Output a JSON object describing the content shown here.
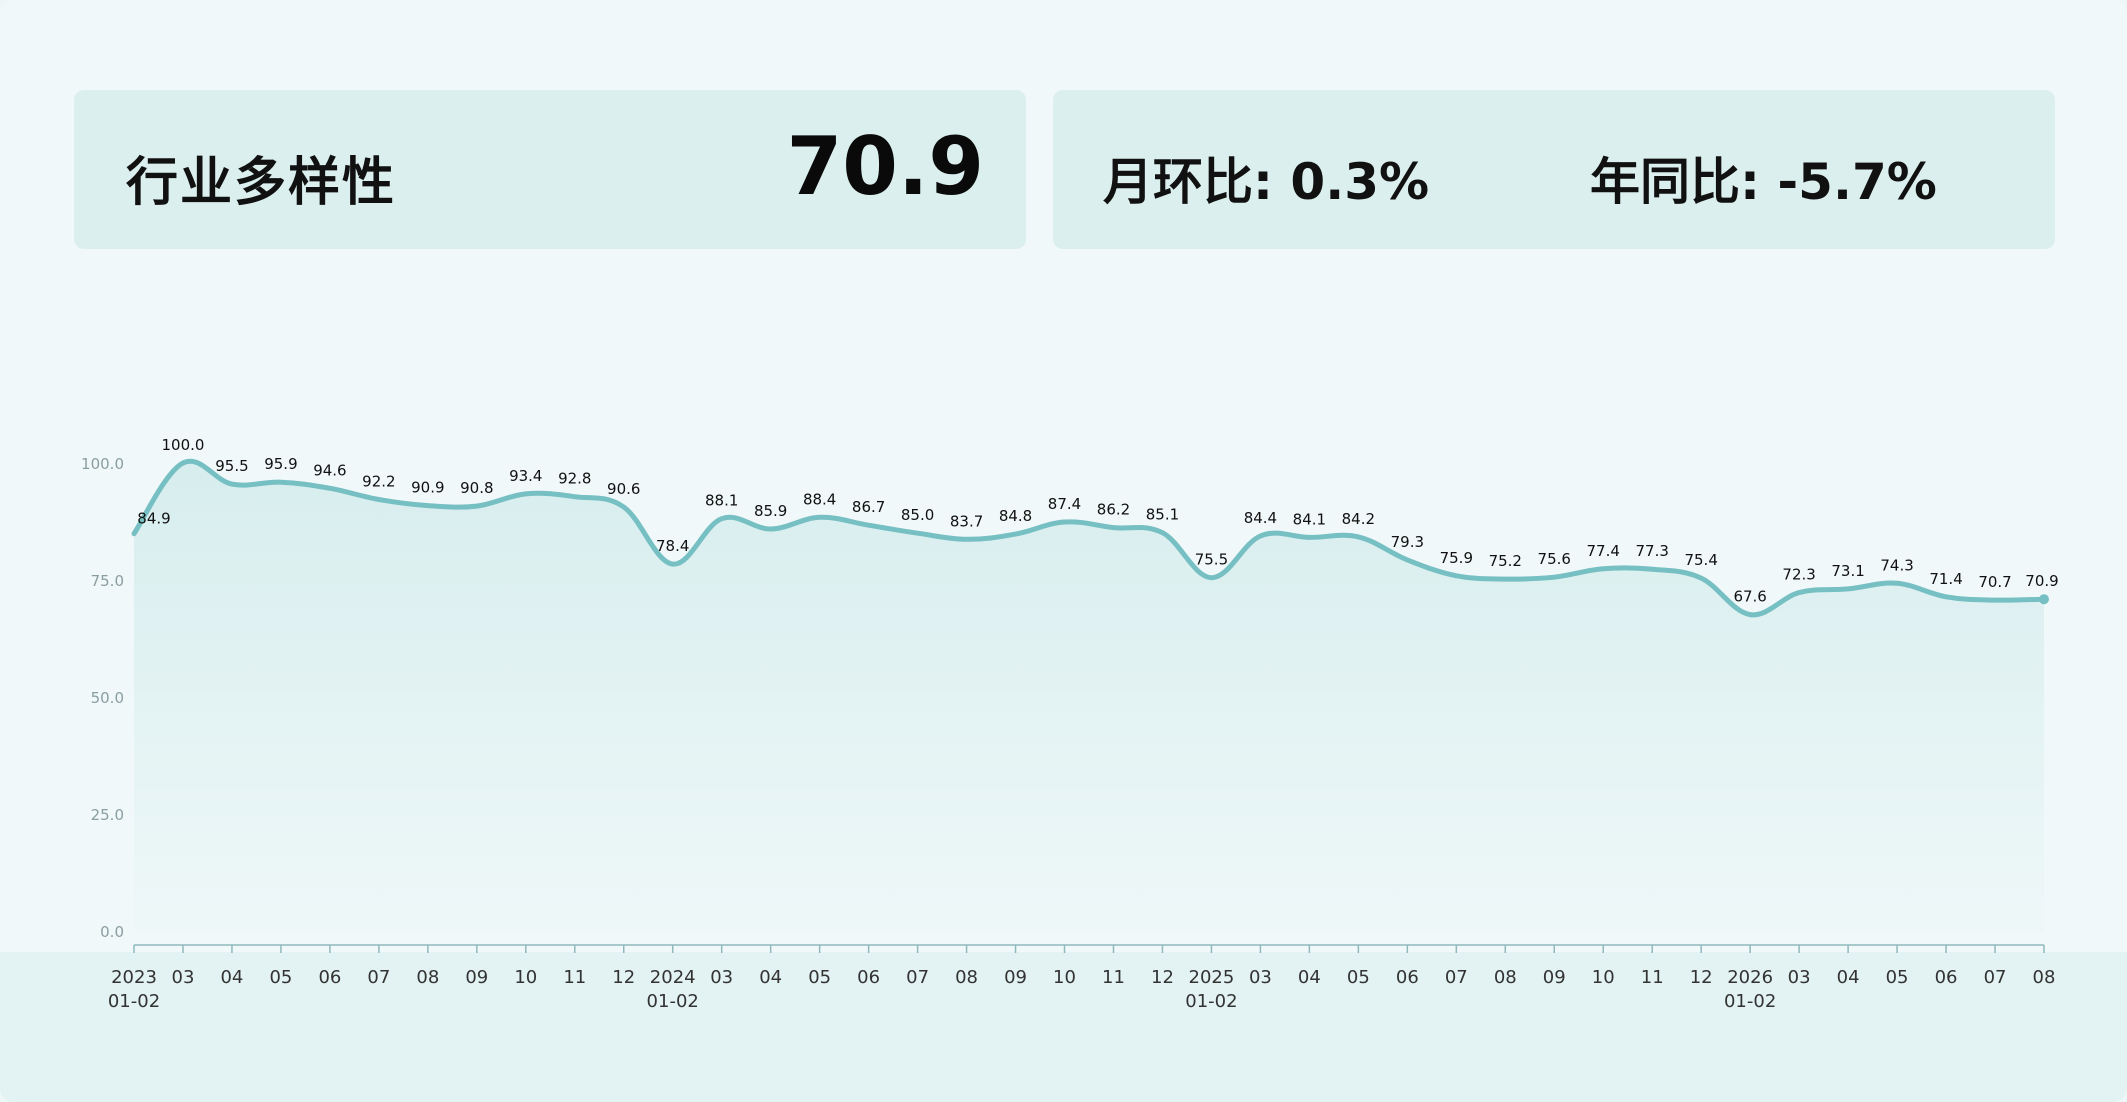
{
  "header": {
    "title": "行业多样性",
    "value": "70.9",
    "mom_label": "月环比",
    "mom_value": "0.3%",
    "yoy_label": "年同比",
    "yoy_value": "-5.7%"
  },
  "colors": {
    "line": "#76bfc3",
    "area_top": "#cfeaea",
    "axis": "#8fb9bd",
    "tick_text": "#8a9ea2",
    "xtick_text": "#333333",
    "label_text": "#111111"
  },
  "chart_data": {
    "type": "area",
    "x": [
      "2023-01-02",
      "2023-03",
      "2023-04",
      "2023-05",
      "2023-06",
      "2023-07",
      "2023-08",
      "2023-09",
      "2023-10",
      "2023-11",
      "2023-12",
      "2024-01-02",
      "2024-03",
      "2024-04",
      "2024-05",
      "2024-06",
      "2024-07",
      "2024-08",
      "2024-09",
      "2024-10",
      "2024-11",
      "2024-12",
      "2025-01-02",
      "2025-03",
      "2025-04",
      "2025-05",
      "2025-06",
      "2025-07",
      "2025-08",
      "2025-09",
      "2025-10",
      "2025-11",
      "2025-12",
      "2026-01-02",
      "2026-03",
      "2026-04",
      "2026-05",
      "2026-06",
      "2026-07",
      "2026-08"
    ],
    "xtick_labels": [
      [
        "2023",
        "01-02"
      ],
      [
        "03"
      ],
      [
        "04"
      ],
      [
        "05"
      ],
      [
        "06"
      ],
      [
        "07"
      ],
      [
        "08"
      ],
      [
        "09"
      ],
      [
        "10"
      ],
      [
        "11"
      ],
      [
        "12"
      ],
      [
        "2024",
        "01-02"
      ],
      [
        "03"
      ],
      [
        "04"
      ],
      [
        "05"
      ],
      [
        "06"
      ],
      [
        "07"
      ],
      [
        "08"
      ],
      [
        "09"
      ],
      [
        "10"
      ],
      [
        "11"
      ],
      [
        "12"
      ],
      [
        "2025",
        "01-02"
      ],
      [
        "03"
      ],
      [
        "04"
      ],
      [
        "05"
      ],
      [
        "06"
      ],
      [
        "07"
      ],
      [
        "08"
      ],
      [
        "09"
      ],
      [
        "10"
      ],
      [
        "11"
      ],
      [
        "12"
      ],
      [
        "2026",
        "01-02"
      ],
      [
        "03"
      ],
      [
        "04"
      ],
      [
        "05"
      ],
      [
        "06"
      ],
      [
        "07"
      ],
      [
        "08"
      ]
    ],
    "values": [
      84.9,
      100.0,
      95.5,
      95.9,
      94.6,
      92.2,
      90.9,
      90.8,
      93.4,
      92.8,
      90.6,
      78.4,
      88.1,
      85.9,
      88.4,
      86.7,
      85.0,
      83.7,
      84.8,
      87.4,
      86.2,
      85.1,
      75.5,
      84.4,
      84.1,
      84.2,
      79.3,
      75.9,
      75.2,
      75.6,
      77.4,
      77.3,
      75.4,
      67.6,
      72.3,
      73.1,
      74.3,
      71.4,
      70.7,
      70.9
    ],
    "data_labels": [
      "84.9",
      "100.0",
      "95.5",
      "95.9",
      "94.6",
      "92.2",
      "90.9",
      "90.8",
      "93.4",
      "92.8",
      "90.6",
      "78.4",
      "88.1",
      "85.9",
      "88.4",
      "86.7",
      "85.0",
      "83.7",
      "84.8",
      "87.4",
      "86.2",
      "85.1",
      "75.5",
      "84.4",
      "84.1",
      "84.2",
      "79.3",
      "75.9",
      "75.2",
      "75.6",
      "77.4",
      "77.3",
      "75.4",
      "67.6",
      "72.3",
      "73.1",
      "74.3",
      "71.4",
      "70.7",
      "70.9"
    ],
    "yticks": [
      0,
      25,
      50,
      75,
      100
    ],
    "ytick_labels": [
      "0.0",
      "25.0",
      "50.0",
      "75.0",
      "100.0"
    ],
    "ylim": [
      0,
      100
    ],
    "grid": false,
    "title": "",
    "xlabel": "",
    "ylabel": ""
  }
}
